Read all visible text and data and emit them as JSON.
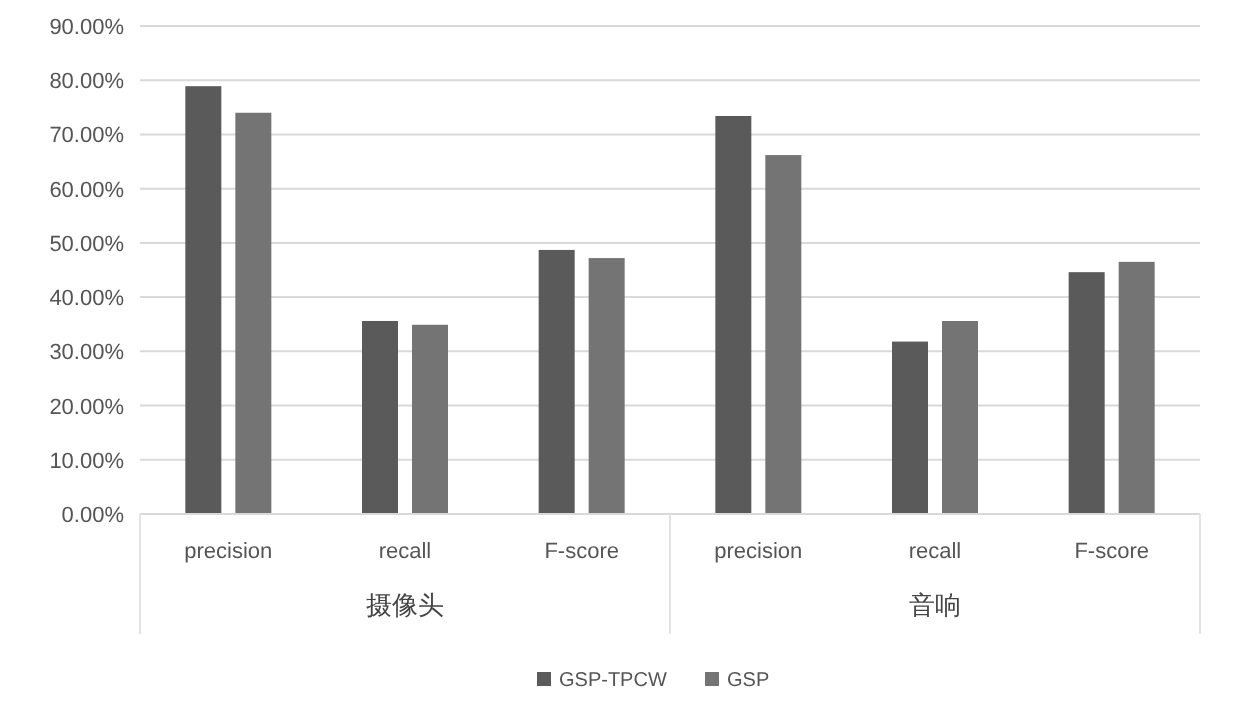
{
  "chart_data": {
    "type": "bar",
    "categories": [
      "precision",
      "recall",
      "F-score",
      "precision",
      "recall",
      "F-score"
    ],
    "series": [
      {
        "name": "GSP-TPCW",
        "color": "#5a5a5a",
        "values": [
          78.9,
          35.6,
          48.7,
          73.4,
          31.8,
          44.6
        ]
      },
      {
        "name": "GSP",
        "color": "#747474",
        "values": [
          74.0,
          34.9,
          47.2,
          66.2,
          35.6,
          46.5
        ]
      }
    ],
    "annotations": [
      "摄像头",
      "音响"
    ],
    "ylim": [
      0,
      90
    ],
    "yticks": [
      {
        "value": 0,
        "label": "0.00%"
      },
      {
        "value": 10,
        "label": "10.00%"
      },
      {
        "value": 20,
        "label": "20.00%"
      },
      {
        "value": 30,
        "label": "30.00%"
      },
      {
        "value": 40,
        "label": "40.00%"
      },
      {
        "value": 50,
        "label": "50.00%"
      },
      {
        "value": 60,
        "label": "60.00%"
      },
      {
        "value": 70,
        "label": "70.00%"
      },
      {
        "value": 80,
        "label": "80.00%"
      },
      {
        "value": 90,
        "label": "90.00%"
      }
    ],
    "grid": "y",
    "legend": "bottom"
  }
}
